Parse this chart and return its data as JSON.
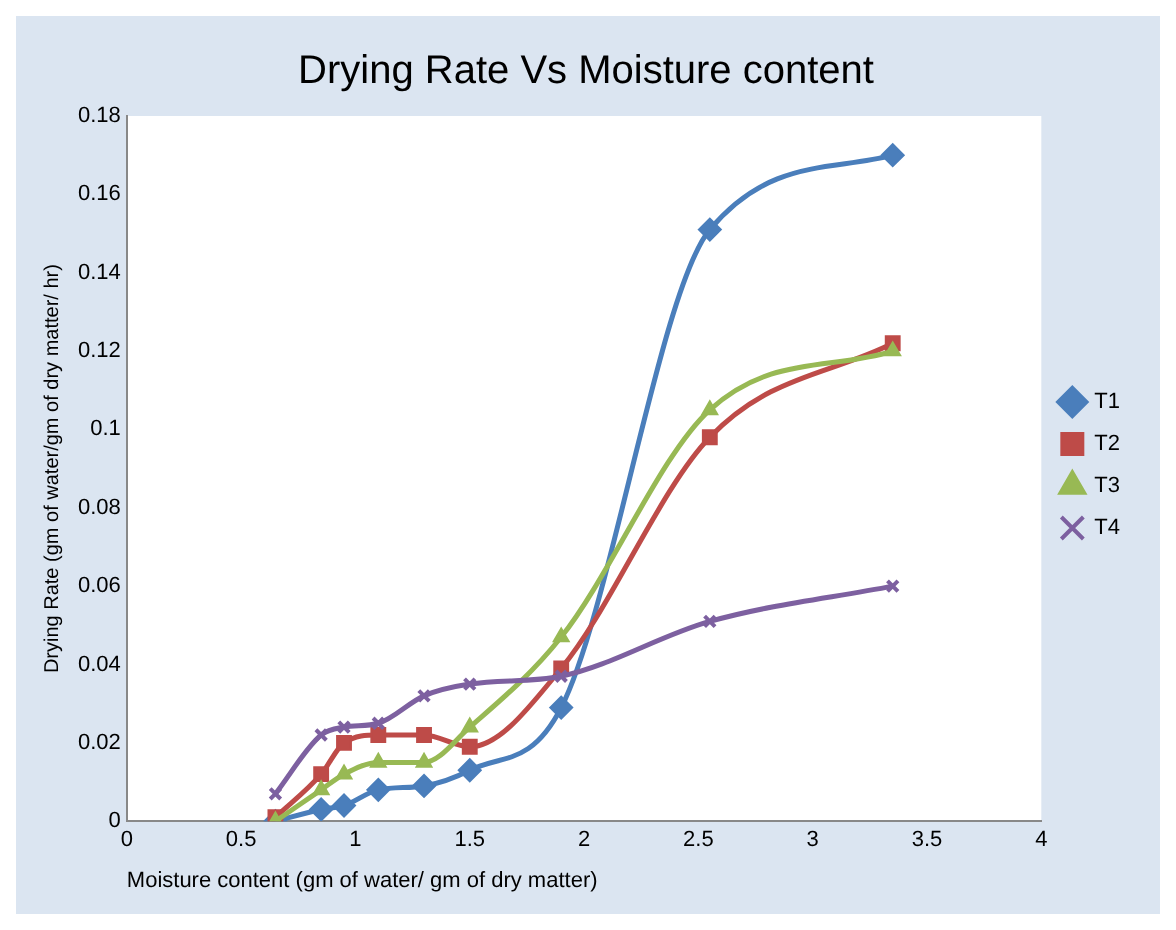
{
  "chart_data": {
    "type": "line",
    "title": "Drying Rate Vs Moisture content",
    "xlabel": "Moisture content (gm of water/ gm of dry matter)",
    "ylabel": "Drying Rate (gm of water/gm of dry matter/ hr)",
    "x": [
      0.65,
      0.85,
      0.95,
      1.1,
      1.3,
      1.5,
      1.9,
      2.55,
      3.35
    ],
    "series": [
      {
        "name": "T1",
        "color": "#4a7ebb",
        "marker": "diamond",
        "values": [
          0,
          0.003,
          0.004,
          0.008,
          0.009,
          0.013,
          0.029,
          0.151,
          0.17
        ]
      },
      {
        "name": "T2",
        "color": "#be4b48",
        "marker": "square",
        "values": [
          0.001,
          0.012,
          0.02,
          0.022,
          0.022,
          0.019,
          0.039,
          0.098,
          0.122
        ]
      },
      {
        "name": "T3",
        "color": "#98b954",
        "marker": "triangle",
        "values": [
          0,
          0.008,
          0.012,
          0.015,
          0.015,
          0.024,
          0.047,
          0.105,
          0.12
        ]
      },
      {
        "name": "T4",
        "color": "#7d60a0",
        "marker": "cross",
        "values": [
          0.007,
          0.022,
          0.024,
          0.025,
          0.032,
          0.035,
          0.037,
          0.051,
          0.06
        ]
      }
    ],
    "xlim": [
      0,
      4
    ],
    "xticks": [
      0,
      0.5,
      1,
      1.5,
      2,
      2.5,
      3,
      3.5,
      4
    ],
    "ylim": [
      0,
      0.18
    ],
    "yticks": [
      0,
      0.02,
      0.04,
      0.06,
      0.08,
      0.1,
      0.12,
      0.14,
      0.16,
      0.18
    ],
    "grid": false,
    "legend": "right"
  }
}
